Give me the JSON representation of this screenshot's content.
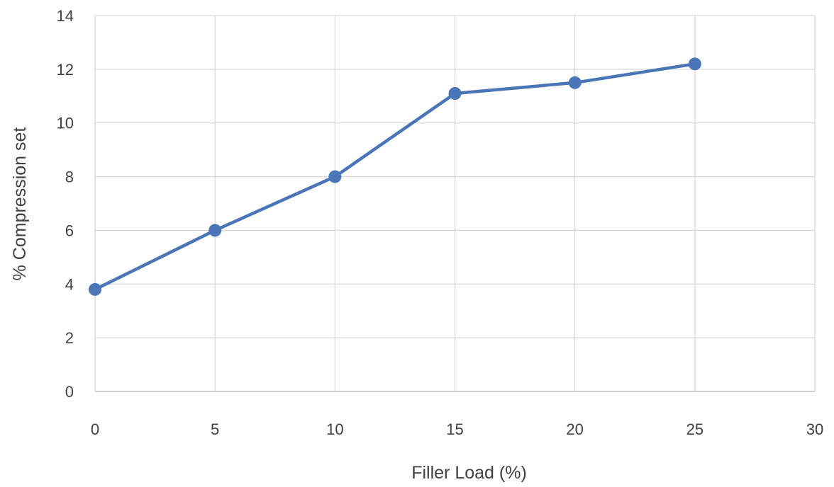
{
  "chart_data": {
    "type": "scatter",
    "title": "",
    "xlabel": "Filler Load (%)",
    "ylabel": "% Compression set",
    "xlim": [
      0,
      30
    ],
    "ylim": [
      0,
      14
    ],
    "x_ticks": [
      "0",
      "5",
      "10",
      "15",
      "20",
      "25",
      "30"
    ],
    "y_ticks": [
      "0",
      "2",
      "4",
      "6",
      "8",
      "10",
      "12",
      "14"
    ],
    "grid": true,
    "legend": "none",
    "series": [
      {
        "x": [
          0,
          5,
          10,
          15,
          20,
          25
        ],
        "y": [
          3.8,
          6.0,
          8.0,
          11.1,
          11.5,
          12.2
        ],
        "color": "#4a76b8",
        "line": true,
        "markers": true
      }
    ]
  }
}
